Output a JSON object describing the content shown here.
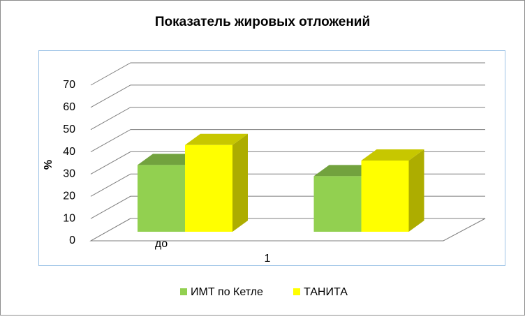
{
  "chart_data": {
    "type": "bar3d",
    "title": "Показатель жировых отложений",
    "y_label": "%",
    "x_label": "1",
    "categories": [
      "до",
      null
    ],
    "series": [
      {
        "name": "ИМТ по Кетле",
        "color": "#92d050",
        "values": [
          30,
          25
        ]
      },
      {
        "name": "ТАНИТА",
        "color": "#ffff00",
        "values": [
          39,
          32
        ]
      }
    ],
    "ylim": [
      0,
      70
    ],
    "yticks": [
      0,
      10,
      20,
      30,
      40,
      50,
      60,
      70
    ],
    "grid": true
  }
}
